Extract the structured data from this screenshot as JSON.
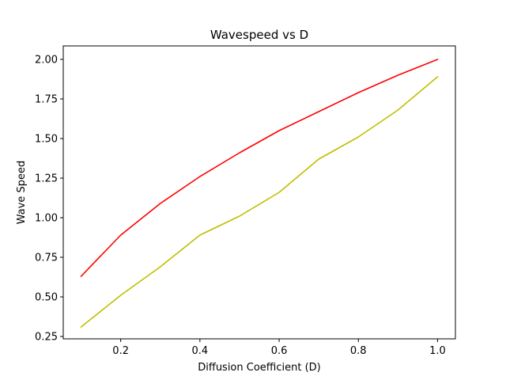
{
  "chart_data": {
    "type": "line",
    "title": "Wavespeed vs D",
    "xlabel": "Diffusion Coefficient (D)",
    "ylabel": "Wave Speed",
    "xlim": [
      0.055,
      1.045
    ],
    "ylim": [
      0.235,
      2.085
    ],
    "xticks": [
      0.2,
      0.4,
      0.6,
      0.8,
      1.0
    ],
    "xtick_labels": [
      "0.2",
      "0.4",
      "0.6",
      "0.8",
      "1.0"
    ],
    "yticks": [
      0.25,
      0.5,
      0.75,
      1.0,
      1.25,
      1.5,
      1.75,
      2.0
    ],
    "ytick_labels": [
      "0.25",
      "0.50",
      "0.75",
      "1.00",
      "1.25",
      "1.50",
      "1.75",
      "2.00"
    ],
    "grid": false,
    "x": [
      0.1,
      0.2,
      0.3,
      0.4,
      0.5,
      0.6,
      0.7,
      0.8,
      0.9,
      1.0
    ],
    "series": [
      {
        "color": "#ff0000",
        "values": [
          0.63,
          0.89,
          1.09,
          1.26,
          1.41,
          1.55,
          1.67,
          1.79,
          1.9,
          2.0
        ]
      },
      {
        "color": "#bfbf00",
        "values": [
          0.31,
          0.51,
          0.69,
          0.89,
          1.01,
          1.16,
          1.37,
          1.51,
          1.68,
          1.89
        ]
      }
    ]
  }
}
